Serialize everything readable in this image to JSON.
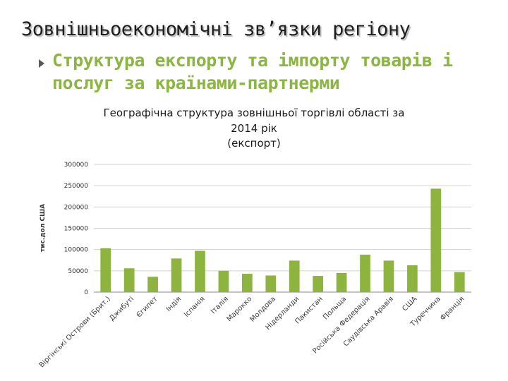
{
  "page": {
    "title": "Зовнішньоекономічні зв’язки регіону",
    "subtitle_line1": "Структура експорту та імпорту товарів і",
    "subtitle_line2": "послуг за країнами-партнерми"
  },
  "colors": {
    "bar": "#8db43e",
    "grid": "#d0d0d0",
    "subtitle": "#8bb640"
  },
  "chart_data": {
    "type": "bar",
    "title_lines": [
      "Географічна структура зовнішньої торгівлі області за",
      "2014 рік",
      "(експорт)"
    ],
    "ylabel": "тис.дол США",
    "ylim": [
      0,
      300000
    ],
    "yticks": [
      0,
      50000,
      100000,
      150000,
      200000,
      250000,
      300000
    ],
    "grid": true,
    "categories": [
      "Віргінські Острови (Брит.)",
      "Джибуті",
      "Єгипет",
      "Індія",
      "Іспанія",
      "Італія",
      "Марокко",
      "Молдова",
      "Нідерланди",
      "Пакистан",
      "Польща",
      "Російська Федерація",
      "Саудівська Аравія",
      "США",
      "Туреччина",
      "Франція"
    ],
    "values": [
      103000,
      56000,
      36000,
      79000,
      97000,
      50000,
      43000,
      39000,
      74000,
      38000,
      45000,
      88000,
      74000,
      63000,
      243000,
      47000
    ]
  }
}
